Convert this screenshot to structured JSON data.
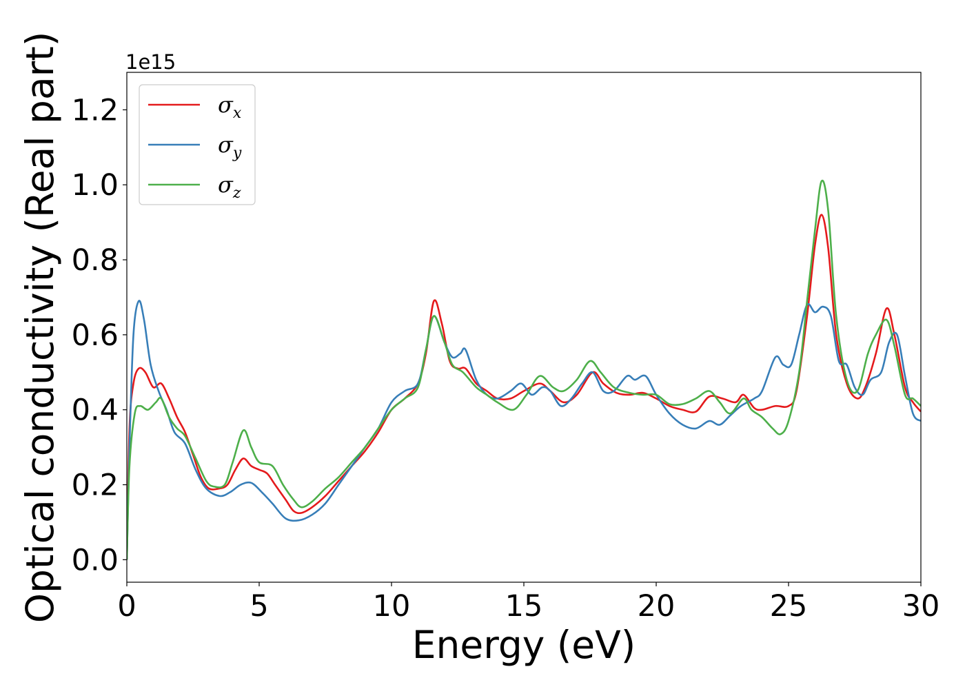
{
  "chart_data": {
    "type": "line",
    "xlabel": "Energy (eV)",
    "ylabel": "Optical conductivity (Real part)",
    "y_offset_label": "1e15",
    "xlim": [
      0,
      30
    ],
    "ylim": [
      -0.06,
      1.3
    ],
    "x_ticks": [
      0,
      5,
      10,
      15,
      20,
      25,
      30
    ],
    "x_tick_labels": [
      "0",
      "5",
      "10",
      "15",
      "20",
      "25",
      "30"
    ],
    "y_ticks": [
      0.0,
      0.2,
      0.4,
      0.6,
      0.8,
      1.0,
      1.2
    ],
    "y_tick_labels": [
      "0.0",
      "0.2",
      "0.4",
      "0.6",
      "0.8",
      "1.0",
      "1.2"
    ],
    "grid": false,
    "legend_position": "top-left",
    "series": [
      {
        "name": "σ",
        "subscript": "x",
        "color": "#e41a1c",
        "points": [
          [
            0,
            0
          ],
          [
            0.1,
            0.35
          ],
          [
            0.25,
            0.47
          ],
          [
            0.45,
            0.51
          ],
          [
            0.7,
            0.5
          ],
          [
            1.0,
            0.46
          ],
          [
            1.3,
            0.47
          ],
          [
            1.6,
            0.43
          ],
          [
            1.9,
            0.38
          ],
          [
            2.2,
            0.34
          ],
          [
            2.5,
            0.28
          ],
          [
            2.8,
            0.22
          ],
          [
            3.1,
            0.19
          ],
          [
            3.5,
            0.19
          ],
          [
            3.8,
            0.2
          ],
          [
            4.1,
            0.24
          ],
          [
            4.4,
            0.27
          ],
          [
            4.7,
            0.25
          ],
          [
            5.0,
            0.24
          ],
          [
            5.3,
            0.23
          ],
          [
            5.6,
            0.2
          ],
          [
            6.0,
            0.16
          ],
          [
            6.3,
            0.13
          ],
          [
            6.6,
            0.125
          ],
          [
            7.0,
            0.14
          ],
          [
            7.5,
            0.17
          ],
          [
            8.0,
            0.21
          ],
          [
            8.5,
            0.25
          ],
          [
            9.0,
            0.29
          ],
          [
            9.5,
            0.34
          ],
          [
            10.0,
            0.4
          ],
          [
            10.5,
            0.43
          ],
          [
            11.0,
            0.47
          ],
          [
            11.3,
            0.55
          ],
          [
            11.6,
            0.69
          ],
          [
            11.9,
            0.63
          ],
          [
            12.2,
            0.53
          ],
          [
            12.5,
            0.51
          ],
          [
            12.8,
            0.51
          ],
          [
            13.2,
            0.47
          ],
          [
            13.6,
            0.45
          ],
          [
            14.0,
            0.43
          ],
          [
            14.5,
            0.43
          ],
          [
            15.0,
            0.45
          ],
          [
            15.6,
            0.47
          ],
          [
            16.0,
            0.45
          ],
          [
            16.5,
            0.42
          ],
          [
            17.0,
            0.44
          ],
          [
            17.6,
            0.5
          ],
          [
            18.0,
            0.47
          ],
          [
            18.5,
            0.445
          ],
          [
            19.0,
            0.44
          ],
          [
            19.5,
            0.445
          ],
          [
            20.0,
            0.43
          ],
          [
            20.5,
            0.41
          ],
          [
            21.0,
            0.4
          ],
          [
            21.5,
            0.395
          ],
          [
            22.0,
            0.435
          ],
          [
            22.5,
            0.43
          ],
          [
            23.0,
            0.42
          ],
          [
            23.3,
            0.44
          ],
          [
            23.7,
            0.405
          ],
          [
            24.0,
            0.4
          ],
          [
            24.5,
            0.41
          ],
          [
            25.0,
            0.41
          ],
          [
            25.3,
            0.45
          ],
          [
            25.7,
            0.65
          ],
          [
            26.0,
            0.84
          ],
          [
            26.25,
            0.92
          ],
          [
            26.5,
            0.83
          ],
          [
            26.8,
            0.6
          ],
          [
            27.2,
            0.47
          ],
          [
            27.6,
            0.43
          ],
          [
            27.9,
            0.46
          ],
          [
            28.3,
            0.55
          ],
          [
            28.7,
            0.67
          ],
          [
            29.0,
            0.6
          ],
          [
            29.4,
            0.46
          ],
          [
            29.7,
            0.42
          ],
          [
            30.0,
            0.395
          ]
        ]
      },
      {
        "name": "σ",
        "subscript": "y",
        "color": "#377eb8",
        "points": [
          [
            0,
            0
          ],
          [
            0.1,
            0.3
          ],
          [
            0.25,
            0.6
          ],
          [
            0.45,
            0.69
          ],
          [
            0.65,
            0.64
          ],
          [
            0.9,
            0.52
          ],
          [
            1.2,
            0.45
          ],
          [
            1.5,
            0.4
          ],
          [
            1.8,
            0.34
          ],
          [
            2.2,
            0.31
          ],
          [
            2.6,
            0.24
          ],
          [
            3.0,
            0.19
          ],
          [
            3.5,
            0.17
          ],
          [
            3.9,
            0.18
          ],
          [
            4.3,
            0.2
          ],
          [
            4.7,
            0.205
          ],
          [
            5.1,
            0.18
          ],
          [
            5.5,
            0.15
          ],
          [
            6.0,
            0.11
          ],
          [
            6.5,
            0.105
          ],
          [
            7.0,
            0.12
          ],
          [
            7.5,
            0.15
          ],
          [
            8.0,
            0.2
          ],
          [
            8.5,
            0.25
          ],
          [
            9.0,
            0.3
          ],
          [
            9.5,
            0.35
          ],
          [
            10.0,
            0.42
          ],
          [
            10.5,
            0.45
          ],
          [
            11.0,
            0.47
          ],
          [
            11.3,
            0.56
          ],
          [
            11.6,
            0.65
          ],
          [
            12.0,
            0.58
          ],
          [
            12.3,
            0.54
          ],
          [
            12.6,
            0.55
          ],
          [
            12.8,
            0.56
          ],
          [
            13.2,
            0.48
          ],
          [
            13.6,
            0.44
          ],
          [
            14.0,
            0.43
          ],
          [
            14.5,
            0.45
          ],
          [
            14.9,
            0.47
          ],
          [
            15.3,
            0.44
          ],
          [
            15.7,
            0.46
          ],
          [
            16.0,
            0.45
          ],
          [
            16.4,
            0.41
          ],
          [
            16.8,
            0.43
          ],
          [
            17.2,
            0.47
          ],
          [
            17.6,
            0.5
          ],
          [
            18.0,
            0.45
          ],
          [
            18.4,
            0.45
          ],
          [
            18.9,
            0.49
          ],
          [
            19.2,
            0.48
          ],
          [
            19.6,
            0.49
          ],
          [
            20.0,
            0.44
          ],
          [
            20.5,
            0.39
          ],
          [
            21.0,
            0.36
          ],
          [
            21.5,
            0.35
          ],
          [
            22.0,
            0.37
          ],
          [
            22.4,
            0.36
          ],
          [
            22.8,
            0.385
          ],
          [
            23.2,
            0.41
          ],
          [
            23.7,
            0.43
          ],
          [
            24.0,
            0.45
          ],
          [
            24.5,
            0.54
          ],
          [
            24.8,
            0.52
          ],
          [
            25.1,
            0.52
          ],
          [
            25.4,
            0.6
          ],
          [
            25.7,
            0.68
          ],
          [
            26.0,
            0.66
          ],
          [
            26.3,
            0.675
          ],
          [
            26.6,
            0.65
          ],
          [
            26.9,
            0.53
          ],
          [
            27.2,
            0.52
          ],
          [
            27.5,
            0.46
          ],
          [
            27.8,
            0.44
          ],
          [
            28.1,
            0.48
          ],
          [
            28.5,
            0.5
          ],
          [
            28.8,
            0.58
          ],
          [
            29.1,
            0.6
          ],
          [
            29.4,
            0.49
          ],
          [
            29.7,
            0.39
          ],
          [
            30.0,
            0.37
          ]
        ]
      },
      {
        "name": "σ",
        "subscript": "z",
        "color": "#4daf4a",
        "points": [
          [
            0,
            0
          ],
          [
            0.1,
            0.25
          ],
          [
            0.3,
            0.39
          ],
          [
            0.5,
            0.41
          ],
          [
            0.8,
            0.4
          ],
          [
            1.1,
            0.42
          ],
          [
            1.3,
            0.43
          ],
          [
            1.6,
            0.38
          ],
          [
            1.9,
            0.35
          ],
          [
            2.2,
            0.33
          ],
          [
            2.6,
            0.27
          ],
          [
            3.0,
            0.21
          ],
          [
            3.3,
            0.195
          ],
          [
            3.7,
            0.2
          ],
          [
            4.0,
            0.26
          ],
          [
            4.4,
            0.345
          ],
          [
            4.7,
            0.3
          ],
          [
            5.0,
            0.26
          ],
          [
            5.5,
            0.25
          ],
          [
            5.9,
            0.2
          ],
          [
            6.3,
            0.16
          ],
          [
            6.6,
            0.14
          ],
          [
            7.0,
            0.155
          ],
          [
            7.5,
            0.19
          ],
          [
            8.0,
            0.22
          ],
          [
            8.5,
            0.26
          ],
          [
            9.0,
            0.3
          ],
          [
            9.5,
            0.35
          ],
          [
            10.0,
            0.4
          ],
          [
            10.5,
            0.43
          ],
          [
            11.0,
            0.46
          ],
          [
            11.3,
            0.56
          ],
          [
            11.6,
            0.65
          ],
          [
            12.0,
            0.58
          ],
          [
            12.3,
            0.52
          ],
          [
            12.7,
            0.5
          ],
          [
            13.2,
            0.46
          ],
          [
            13.6,
            0.44
          ],
          [
            14.0,
            0.42
          ],
          [
            14.6,
            0.4
          ],
          [
            15.1,
            0.44
          ],
          [
            15.6,
            0.49
          ],
          [
            16.1,
            0.46
          ],
          [
            16.5,
            0.45
          ],
          [
            17.0,
            0.48
          ],
          [
            17.5,
            0.53
          ],
          [
            17.9,
            0.5
          ],
          [
            18.4,
            0.46
          ],
          [
            19.0,
            0.445
          ],
          [
            19.5,
            0.44
          ],
          [
            20.0,
            0.44
          ],
          [
            20.5,
            0.415
          ],
          [
            21.0,
            0.415
          ],
          [
            21.5,
            0.43
          ],
          [
            22.0,
            0.45
          ],
          [
            22.4,
            0.42
          ],
          [
            22.8,
            0.39
          ],
          [
            23.3,
            0.43
          ],
          [
            23.6,
            0.4
          ],
          [
            24.0,
            0.38
          ],
          [
            24.4,
            0.35
          ],
          [
            24.7,
            0.335
          ],
          [
            25.0,
            0.37
          ],
          [
            25.4,
            0.5
          ],
          [
            25.7,
            0.69
          ],
          [
            26.0,
            0.88
          ],
          [
            26.25,
            1.01
          ],
          [
            26.5,
            0.93
          ],
          [
            26.8,
            0.65
          ],
          [
            27.2,
            0.48
          ],
          [
            27.6,
            0.45
          ],
          [
            28.0,
            0.55
          ],
          [
            28.3,
            0.6
          ],
          [
            28.7,
            0.64
          ],
          [
            29.0,
            0.57
          ],
          [
            29.4,
            0.44
          ],
          [
            29.7,
            0.43
          ],
          [
            30.0,
            0.41
          ]
        ]
      }
    ]
  }
}
